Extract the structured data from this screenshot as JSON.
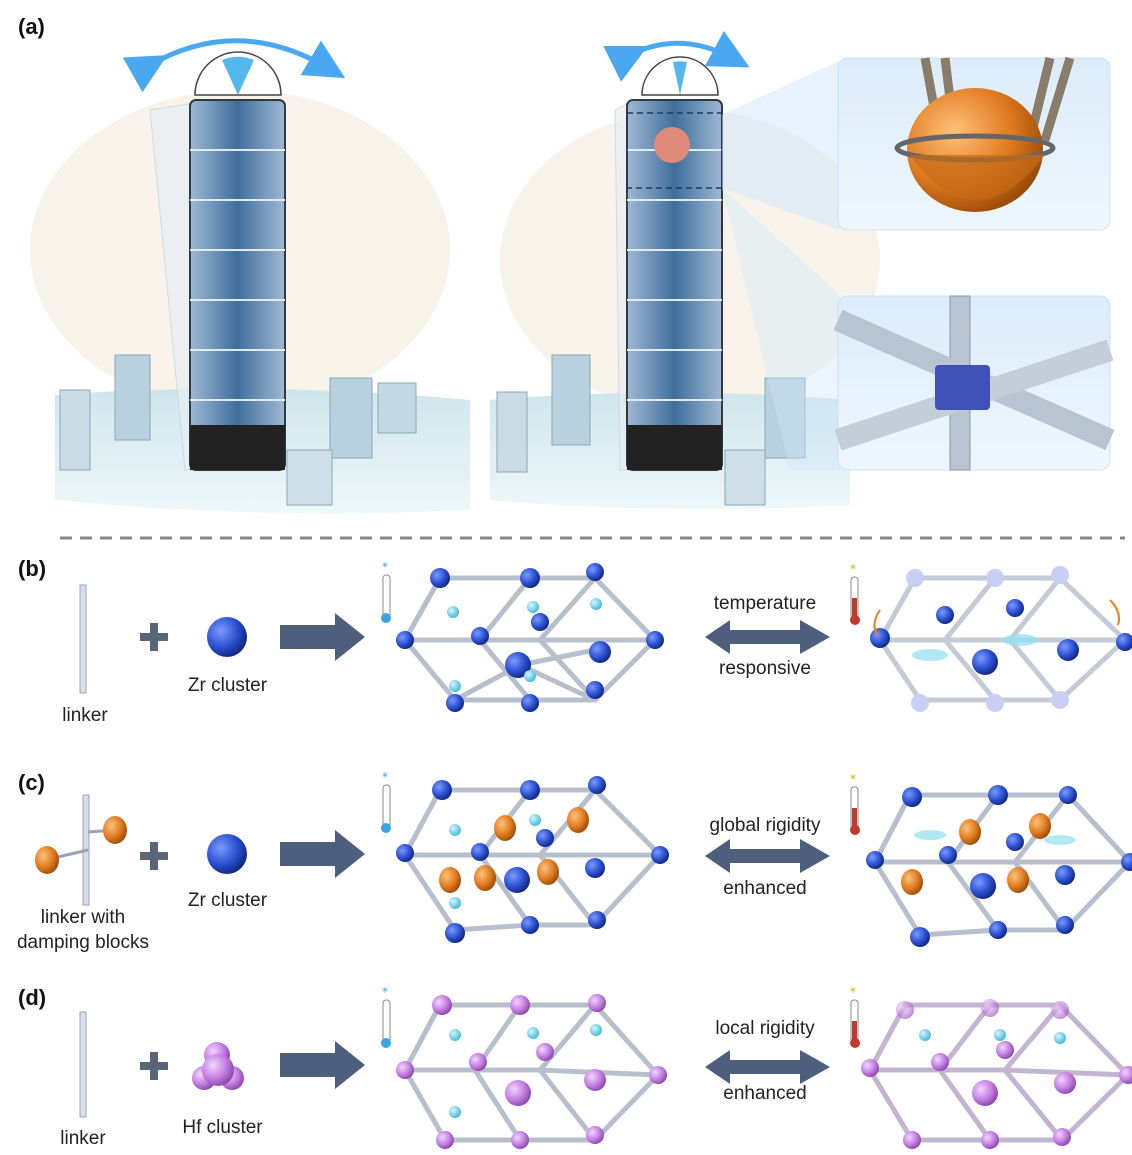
{
  "panels": {
    "a": {
      "label": "(a)"
    },
    "b": {
      "label": "(b)",
      "component1": "linker",
      "component2": "Zr cluster",
      "arrow_top": "temperature",
      "arrow_bottom": "responsive"
    },
    "c": {
      "label": "(c)",
      "component1_line1": "linker with",
      "component1_line2": "damping blocks",
      "component2": "Zr cluster",
      "arrow_top": "global rigidity",
      "arrow_bottom": "enhanced"
    },
    "d": {
      "label": "(d)",
      "component1": "linker",
      "component2": "Hf cluster",
      "arrow_top": "local rigidity",
      "arrow_bottom": "enhanced"
    }
  },
  "colors": {
    "zr_node": "#2a4fcf",
    "hf_node": "#c27ce0",
    "guest": "#5fd0e8",
    "damper": "#e07a1f",
    "arrow": "#4e5f7e",
    "thermo_cold": "#39a6e0",
    "thermo_hot": "#c0392b",
    "sky_accent": "#4aa8f0"
  }
}
